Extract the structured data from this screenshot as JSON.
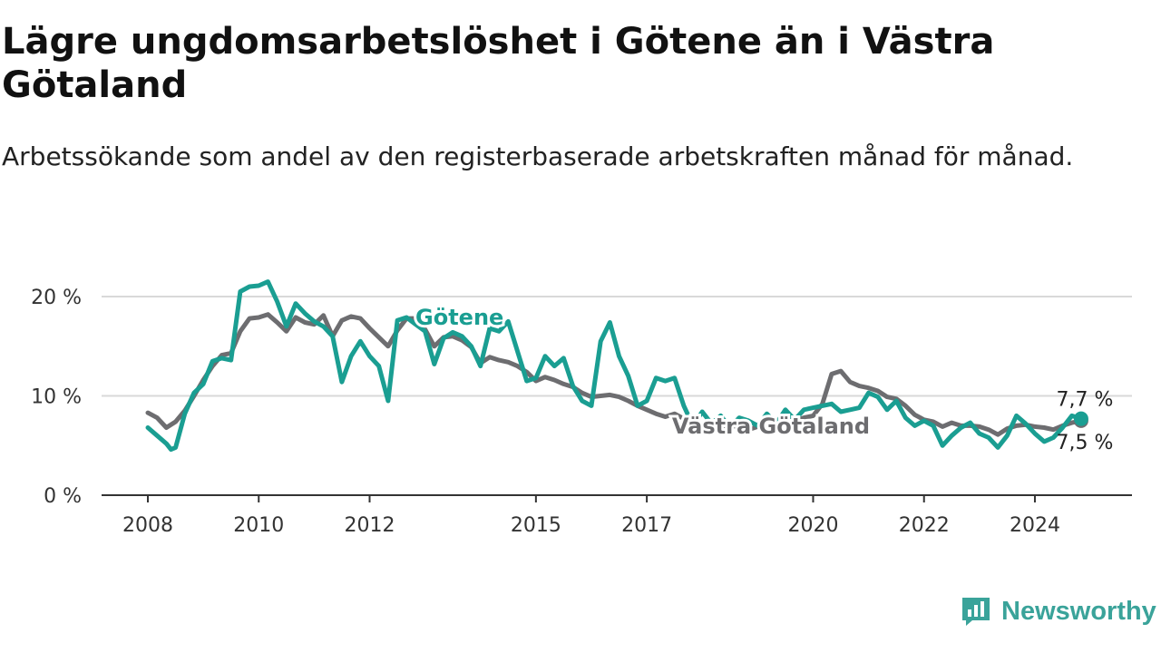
{
  "header": {
    "title": "Lägre ungdomsarbetslöshet i Götene än i Västra Götaland",
    "subtitle": "Arbetssökande som andel av den registerbaserade arbetskraften månad för månad."
  },
  "brand": {
    "name": "Newsworthy",
    "icon": "newsworthy-logo-icon",
    "color": "#3aa39a"
  },
  "chart_data": {
    "type": "line",
    "x_ticks": [
      "2008",
      "2010",
      "2012",
      "2015",
      "2017",
      "2020",
      "2022",
      "2024"
    ],
    "y_ticks": [
      "0 %",
      "10 %",
      "20 %"
    ],
    "y_tick_values": [
      0,
      10,
      20
    ],
    "ylim": [
      0,
      20
    ],
    "grid": true,
    "series": [
      {
        "name": "Västra Götaland",
        "color": "#6d6d70",
        "end_label": "7,5 %",
        "points": [
          [
            "2008-01",
            8.3
          ],
          [
            "2008-03",
            7.8
          ],
          [
            "2008-05",
            6.8
          ],
          [
            "2008-07",
            7.4
          ],
          [
            "2008-09",
            8.5
          ],
          [
            "2008-11",
            10.0
          ],
          [
            "2009-01",
            11.6
          ],
          [
            "2009-03",
            13.0
          ],
          [
            "2009-05",
            14.1
          ],
          [
            "2009-07",
            14.3
          ],
          [
            "2009-09",
            16.5
          ],
          [
            "2009-11",
            17.8
          ],
          [
            "2010-01",
            17.9
          ],
          [
            "2010-03",
            18.2
          ],
          [
            "2010-05",
            17.4
          ],
          [
            "2010-07",
            16.5
          ],
          [
            "2010-09",
            17.9
          ],
          [
            "2010-11",
            17.4
          ],
          [
            "2011-01",
            17.2
          ],
          [
            "2011-03",
            18.1
          ],
          [
            "2011-05",
            16.0
          ],
          [
            "2011-07",
            17.6
          ],
          [
            "2011-09",
            18.0
          ],
          [
            "2011-11",
            17.8
          ],
          [
            "2012-01",
            16.8
          ],
          [
            "2012-03",
            15.9
          ],
          [
            "2012-05",
            15.0
          ],
          [
            "2012-07",
            16.6
          ],
          [
            "2012-09",
            17.8
          ],
          [
            "2012-11",
            17.8
          ],
          [
            "2013-01",
            16.7
          ],
          [
            "2013-03",
            15.0
          ],
          [
            "2013-05",
            15.9
          ],
          [
            "2013-07",
            16.0
          ],
          [
            "2013-09",
            15.6
          ],
          [
            "2013-11",
            14.9
          ],
          [
            "2014-01",
            13.3
          ],
          [
            "2014-03",
            13.9
          ],
          [
            "2014-05",
            13.6
          ],
          [
            "2014-07",
            13.4
          ],
          [
            "2014-09",
            13.0
          ],
          [
            "2014-11",
            12.4
          ],
          [
            "2015-01",
            11.5
          ],
          [
            "2015-03",
            11.9
          ],
          [
            "2015-05",
            11.6
          ],
          [
            "2015-07",
            11.2
          ],
          [
            "2015-09",
            10.9
          ],
          [
            "2015-11",
            10.3
          ],
          [
            "2016-01",
            9.9
          ],
          [
            "2016-03",
            10.0
          ],
          [
            "2016-05",
            10.1
          ],
          [
            "2016-07",
            9.9
          ],
          [
            "2016-09",
            9.5
          ],
          [
            "2016-11",
            9.0
          ],
          [
            "2017-01",
            8.6
          ],
          [
            "2017-03",
            8.2
          ],
          [
            "2017-05",
            7.9
          ],
          [
            "2017-07",
            8.2
          ],
          [
            "2017-09",
            7.7
          ],
          [
            "2017-11",
            7.4
          ],
          [
            "2018-01",
            7.1
          ],
          [
            "2018-03",
            6.8
          ],
          [
            "2018-05",
            6.6
          ],
          [
            "2018-07",
            7.1
          ],
          [
            "2018-09",
            6.8
          ],
          [
            "2018-11",
            6.6
          ],
          [
            "2019-01",
            6.9
          ],
          [
            "2019-03",
            7.0
          ],
          [
            "2019-05",
            7.2
          ],
          [
            "2019-07",
            7.6
          ],
          [
            "2019-09",
            7.5
          ],
          [
            "2019-11",
            7.8
          ],
          [
            "2020-01",
            8.0
          ],
          [
            "2020-03",
            9.2
          ],
          [
            "2020-05",
            12.2
          ],
          [
            "2020-07",
            12.5
          ],
          [
            "2020-09",
            11.4
          ],
          [
            "2020-11",
            11.0
          ],
          [
            "2021-01",
            10.8
          ],
          [
            "2021-03",
            10.5
          ],
          [
            "2021-05",
            9.9
          ],
          [
            "2021-07",
            9.7
          ],
          [
            "2021-09",
            9.0
          ],
          [
            "2021-11",
            8.1
          ],
          [
            "2022-01",
            7.6
          ],
          [
            "2022-03",
            7.4
          ],
          [
            "2022-05",
            6.9
          ],
          [
            "2022-07",
            7.3
          ],
          [
            "2022-09",
            7.0
          ],
          [
            "2022-11",
            7.0
          ],
          [
            "2023-01",
            6.9
          ],
          [
            "2023-03",
            6.6
          ],
          [
            "2023-05",
            6.1
          ],
          [
            "2023-07",
            6.7
          ],
          [
            "2023-09",
            7.0
          ],
          [
            "2023-11",
            7.1
          ],
          [
            "2024-01",
            6.9
          ],
          [
            "2024-03",
            6.8
          ],
          [
            "2024-05",
            6.6
          ],
          [
            "2024-07",
            7.0
          ],
          [
            "2024-09",
            7.3
          ],
          [
            "2024-11",
            7.5
          ]
        ]
      },
      {
        "name": "Götene",
        "color": "#1a9e92",
        "end_label": "7,7 %",
        "points": [
          [
            "2008-01",
            6.8
          ],
          [
            "2008-03",
            6.0
          ],
          [
            "2008-05",
            5.2
          ],
          [
            "2008-06",
            4.6
          ],
          [
            "2008-07",
            4.8
          ],
          [
            "2008-09",
            8.2
          ],
          [
            "2008-11",
            10.3
          ],
          [
            "2009-01",
            11.2
          ],
          [
            "2009-03",
            13.5
          ],
          [
            "2009-05",
            13.8
          ],
          [
            "2009-07",
            13.6
          ],
          [
            "2009-09",
            20.5
          ],
          [
            "2009-11",
            21.0
          ],
          [
            "2010-01",
            21.1
          ],
          [
            "2010-03",
            21.5
          ],
          [
            "2010-05",
            19.5
          ],
          [
            "2010-07",
            17.0
          ],
          [
            "2010-09",
            19.3
          ],
          [
            "2010-11",
            18.3
          ],
          [
            "2011-01",
            17.5
          ],
          [
            "2011-03",
            17.0
          ],
          [
            "2011-05",
            16.0
          ],
          [
            "2011-07",
            11.4
          ],
          [
            "2011-09",
            14.0
          ],
          [
            "2011-11",
            15.5
          ],
          [
            "2012-01",
            14.0
          ],
          [
            "2012-03",
            13.0
          ],
          [
            "2012-05",
            9.5
          ],
          [
            "2012-07",
            17.6
          ],
          [
            "2012-09",
            17.9
          ],
          [
            "2012-11",
            17.2
          ],
          [
            "2013-01",
            16.5
          ],
          [
            "2013-03",
            13.2
          ],
          [
            "2013-05",
            15.8
          ],
          [
            "2013-07",
            16.4
          ],
          [
            "2013-09",
            16.0
          ],
          [
            "2013-11",
            15.0
          ],
          [
            "2014-01",
            13.0
          ],
          [
            "2014-03",
            16.8
          ],
          [
            "2014-05",
            16.5
          ],
          [
            "2014-07",
            17.5
          ],
          [
            "2014-09",
            14.5
          ],
          [
            "2014-11",
            11.5
          ],
          [
            "2015-01",
            11.8
          ],
          [
            "2015-03",
            14.0
          ],
          [
            "2015-05",
            13.0
          ],
          [
            "2015-07",
            13.8
          ],
          [
            "2015-09",
            11.0
          ],
          [
            "2015-11",
            9.5
          ],
          [
            "2016-01",
            9.0
          ],
          [
            "2016-03",
            15.5
          ],
          [
            "2016-05",
            17.4
          ],
          [
            "2016-07",
            14.0
          ],
          [
            "2016-09",
            12.0
          ],
          [
            "2016-11",
            9.0
          ],
          [
            "2017-01",
            9.5
          ],
          [
            "2017-03",
            11.8
          ],
          [
            "2017-05",
            11.5
          ],
          [
            "2017-07",
            11.8
          ],
          [
            "2017-09",
            9.0
          ],
          [
            "2017-11",
            7.0
          ],
          [
            "2018-01",
            8.4
          ],
          [
            "2018-03",
            7.2
          ],
          [
            "2018-05",
            8.0
          ],
          [
            "2018-07",
            6.8
          ],
          [
            "2018-09",
            7.8
          ],
          [
            "2018-11",
            7.5
          ],
          [
            "2019-01",
            7.0
          ],
          [
            "2019-03",
            8.2
          ],
          [
            "2019-05",
            7.2
          ],
          [
            "2019-07",
            8.6
          ],
          [
            "2019-09",
            7.6
          ],
          [
            "2019-11",
            8.6
          ],
          [
            "2020-01",
            8.8
          ],
          [
            "2020-03",
            9.0
          ],
          [
            "2020-05",
            9.2
          ],
          [
            "2020-07",
            8.4
          ],
          [
            "2020-09",
            8.6
          ],
          [
            "2020-11",
            8.8
          ],
          [
            "2021-01",
            10.3
          ],
          [
            "2021-03",
            9.9
          ],
          [
            "2021-05",
            8.6
          ],
          [
            "2021-07",
            9.5
          ],
          [
            "2021-09",
            7.8
          ],
          [
            "2021-11",
            7.0
          ],
          [
            "2022-01",
            7.5
          ],
          [
            "2022-03",
            7.0
          ],
          [
            "2022-05",
            5.0
          ],
          [
            "2022-07",
            6.0
          ],
          [
            "2022-09",
            6.8
          ],
          [
            "2022-11",
            7.3
          ],
          [
            "2023-01",
            6.2
          ],
          [
            "2023-03",
            5.8
          ],
          [
            "2023-05",
            4.8
          ],
          [
            "2023-07",
            6.0
          ],
          [
            "2023-09",
            8.0
          ],
          [
            "2023-11",
            7.2
          ],
          [
            "2024-01",
            6.2
          ],
          [
            "2024-03",
            5.4
          ],
          [
            "2024-05",
            5.8
          ],
          [
            "2024-07",
            6.8
          ],
          [
            "2024-09",
            8.0
          ],
          [
            "2024-11",
            7.7
          ]
        ]
      }
    ],
    "series_labels": [
      {
        "text": "Götene",
        "series": "Götene",
        "color": "#1a9e92"
      },
      {
        "text": "Västra Götaland",
        "series": "Västra Götaland",
        "color": "#6d6d70"
      }
    ]
  }
}
